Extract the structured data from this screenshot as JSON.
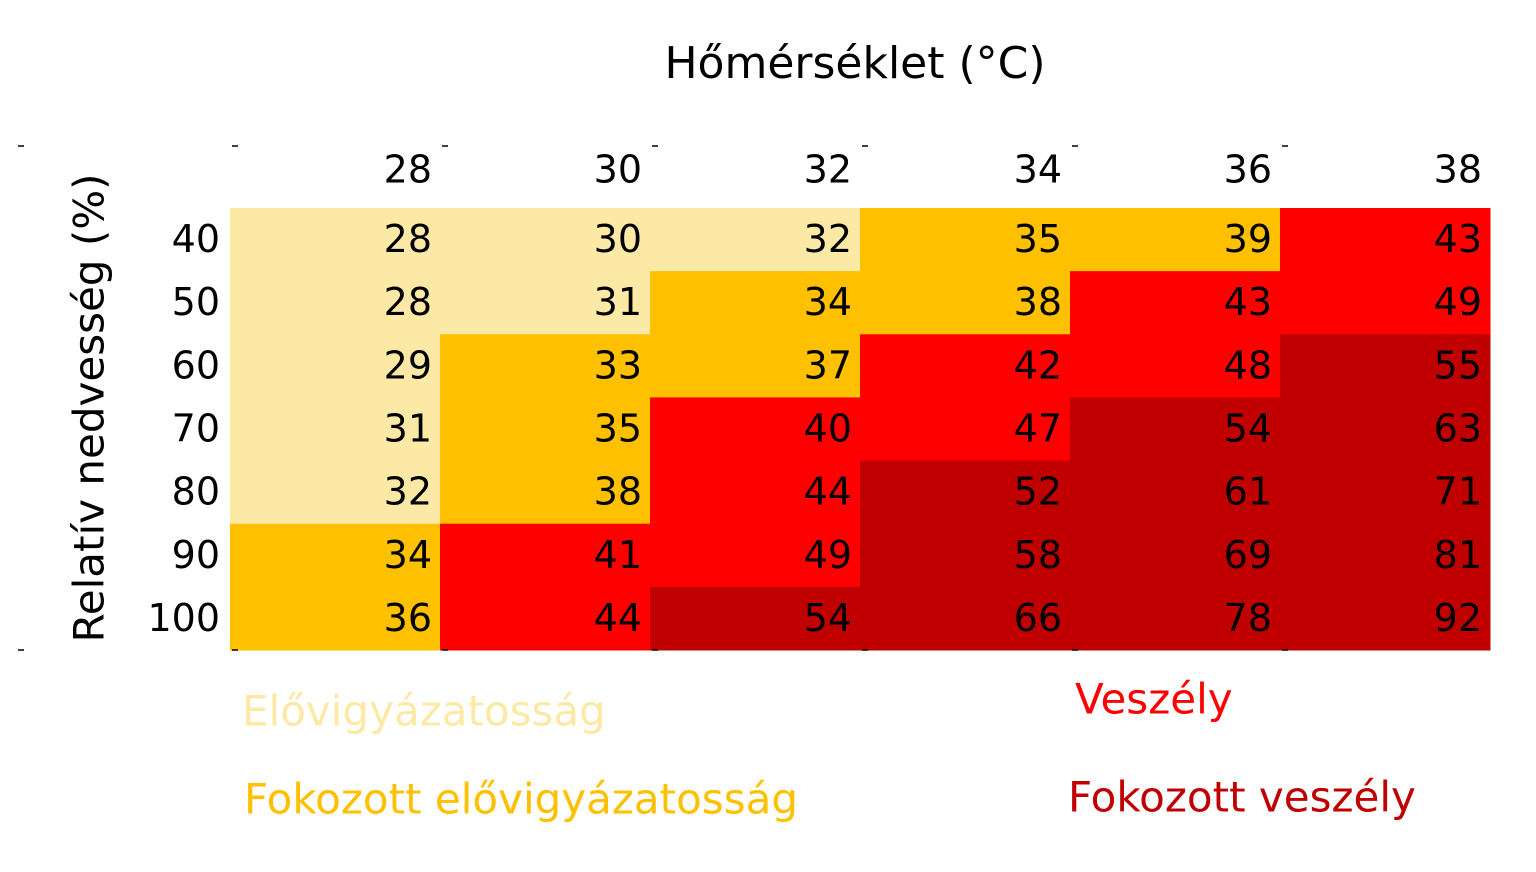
{
  "chart_data": {
    "type": "heatmap",
    "title": "Hőmérséklet (°C)",
    "y_label": "Relatív nedvesség (%)",
    "x": [
      28,
      30,
      32,
      34,
      36,
      38
    ],
    "y": [
      40,
      50,
      60,
      70,
      80,
      90,
      100
    ],
    "values": [
      [
        28,
        30,
        32,
        35,
        39,
        43
      ],
      [
        28,
        31,
        34,
        38,
        43,
        49
      ],
      [
        29,
        33,
        37,
        42,
        48,
        55
      ],
      [
        31,
        35,
        40,
        47,
        54,
        63
      ],
      [
        32,
        38,
        44,
        52,
        61,
        71
      ],
      [
        34,
        41,
        49,
        58,
        69,
        81
      ],
      [
        36,
        44,
        54,
        66,
        78,
        92
      ]
    ],
    "levels": [
      [
        0,
        0,
        0,
        1,
        1,
        2
      ],
      [
        0,
        0,
        1,
        1,
        2,
        2
      ],
      [
        0,
        1,
        1,
        2,
        2,
        3
      ],
      [
        0,
        1,
        2,
        2,
        3,
        3
      ],
      [
        0,
        1,
        2,
        3,
        3,
        3
      ],
      [
        1,
        2,
        2,
        3,
        3,
        3
      ],
      [
        1,
        2,
        3,
        3,
        3,
        3
      ]
    ],
    "legend": [
      {
        "name": "Elővigyázatosság",
        "color": "#fde9a6"
      },
      {
        "name": "Fokozott elővigyázatosság",
        "color": "#ffc000"
      },
      {
        "name": "Veszély",
        "color": "#ff0000"
      },
      {
        "name": "Fokozott veszély",
        "color": "#c00000"
      }
    ]
  }
}
